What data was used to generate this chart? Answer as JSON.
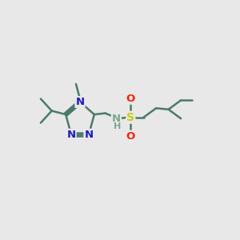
{
  "bg_color": "#e8e8e8",
  "bond_color": "#4a7a6a",
  "bond_width": 1.8,
  "n_color": "#1a1acc",
  "s_color": "#cccc00",
  "o_color": "#ff2200",
  "nh_color": "#7aaa8a",
  "font_size_atom": 9.5,
  "title": "",
  "xlim": [
    0,
    12
  ],
  "ylim": [
    0,
    10
  ]
}
